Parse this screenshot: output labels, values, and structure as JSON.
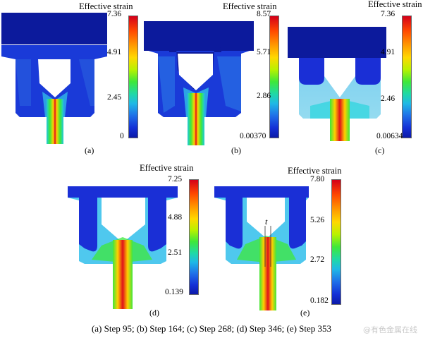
{
  "colorbar_title": "Effective strain",
  "panels": {
    "a": {
      "label": "(a)",
      "max": "7.36",
      "t2": "4.91",
      "t3": "2.45",
      "min": "0"
    },
    "b": {
      "label": "(b)",
      "max": "8.57",
      "t2": "5.71",
      "t3": "2.86",
      "min": "0.00370"
    },
    "c": {
      "label": "(c)",
      "max": "7.36",
      "t2": "4.91",
      "t3": "2.46",
      "min": "0.00634"
    },
    "d": {
      "label": "(d)",
      "max": "7.25",
      "t2": "4.88",
      "t3": "2.51",
      "min": "0.139"
    },
    "e": {
      "label": "(e)",
      "max": "7.80",
      "t2": "5.26",
      "t3": "2.72",
      "min": "0.182",
      "annotation": "t"
    }
  },
  "caption": "(a) Step 95; (b) Step 164; (c) Step  268; (d) Step 346; (e) Step 353",
  "watermark": "@有色金属在线",
  "colors": {
    "die_blue": "#1a2fd6",
    "dark_blue": "#0c1a9c",
    "light_blue": "#4fb8ee",
    "cyan": "#34d6e0",
    "green": "#3ee83a",
    "yellow": "#ffe000",
    "red": "#e0101a"
  }
}
